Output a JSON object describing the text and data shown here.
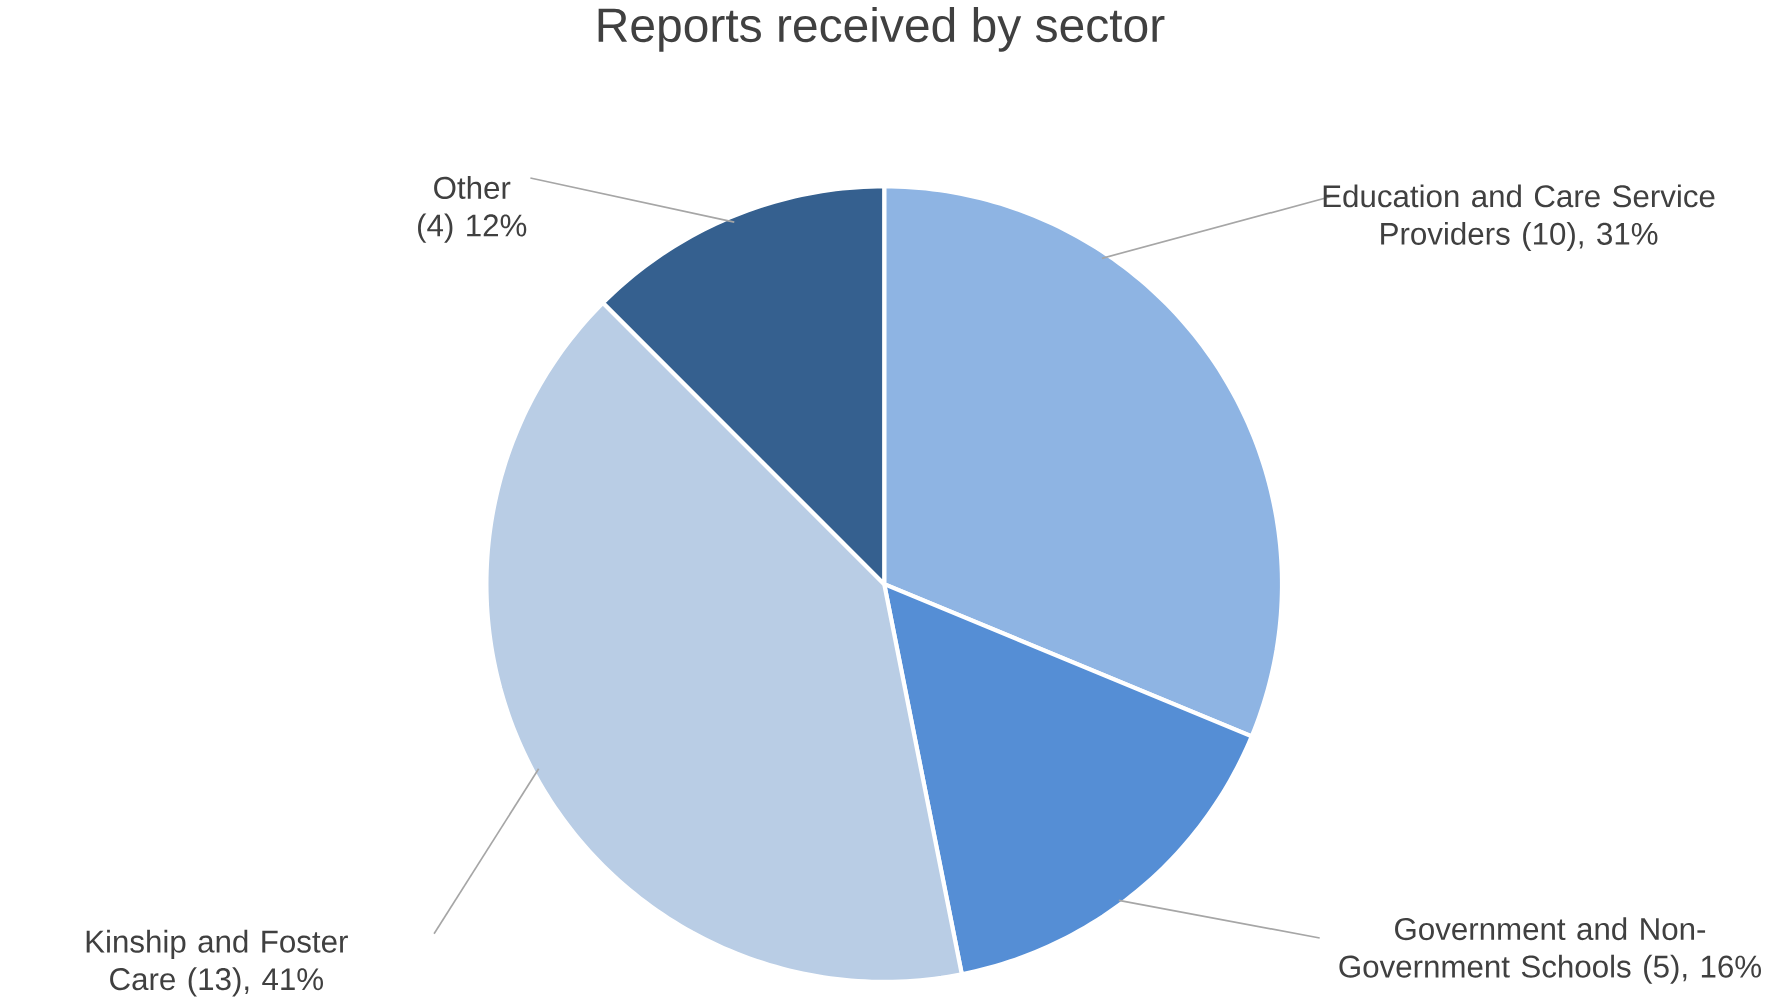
{
  "chart_data": {
    "type": "pie",
    "title": "Reports received by sector",
    "categories": [
      "Education and Care Service Providers",
      "Government and Non-Government Schools",
      "Kinship and Foster Care",
      "Other"
    ],
    "values": [
      10,
      5,
      13,
      4
    ],
    "value_labels": [
      "(10), 31%",
      "(5), 16%",
      "(13), 41%",
      "(4) 12%"
    ],
    "colors": [
      "#8eb4e3",
      "#558ed5",
      "#b9cde5",
      "#35608f"
    ]
  }
}
